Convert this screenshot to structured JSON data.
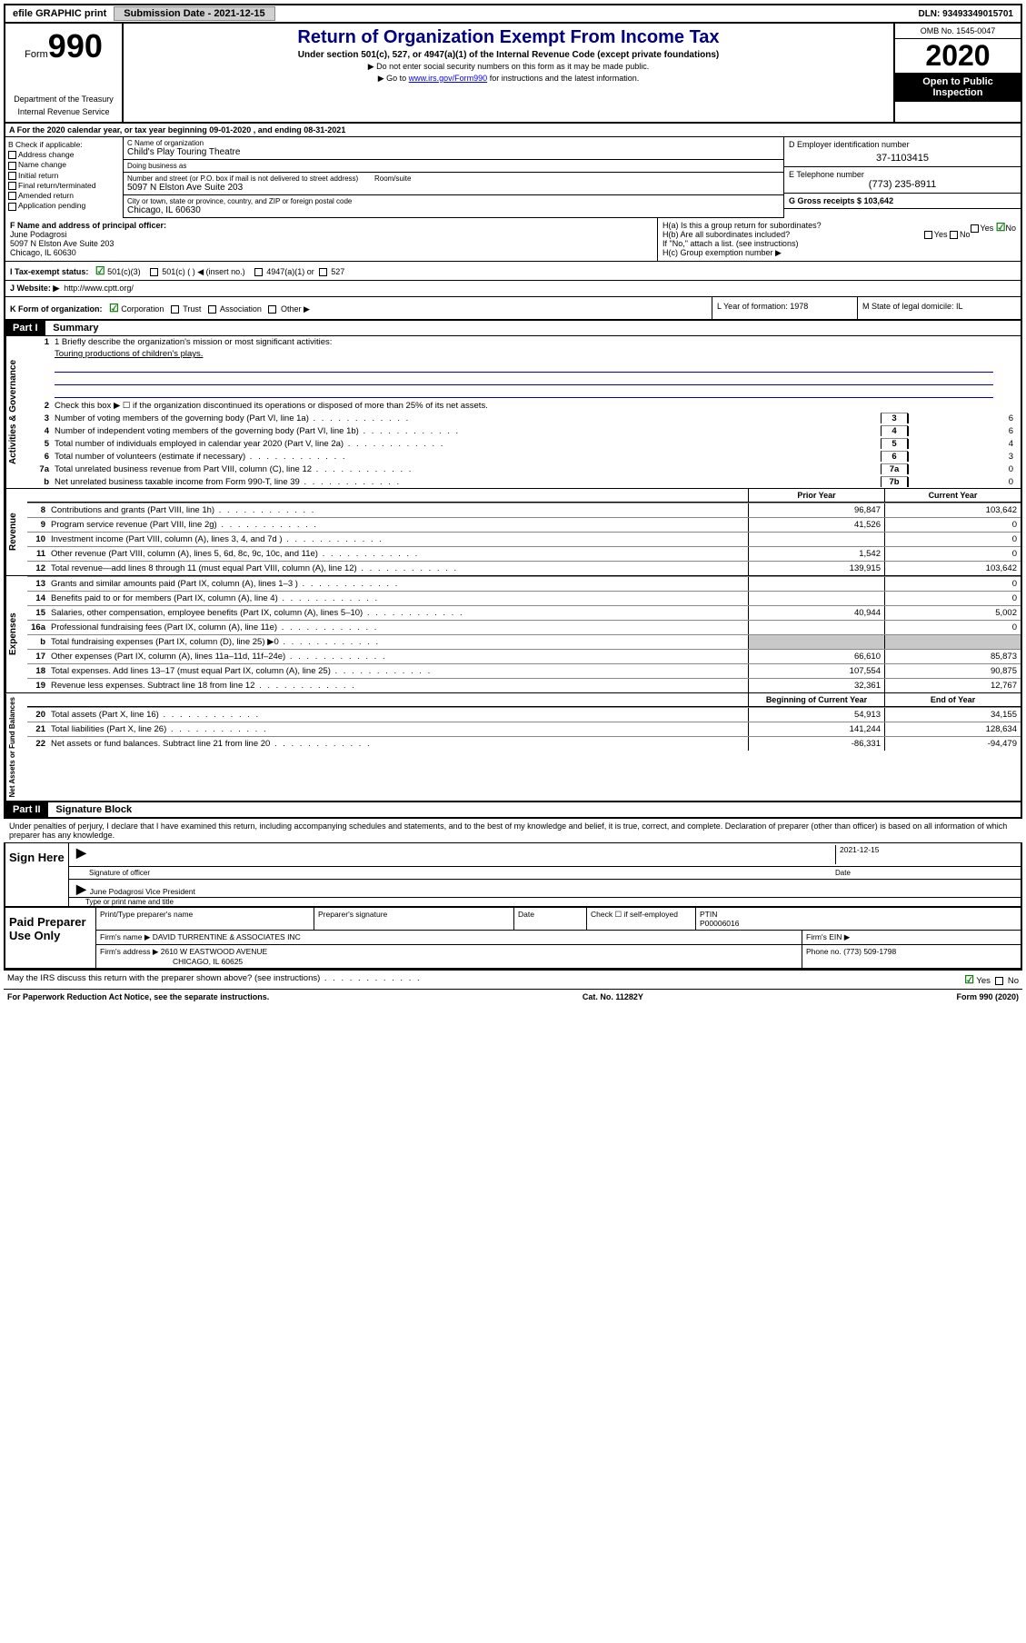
{
  "topbar": {
    "efile_label": "efile GRAPHIC print",
    "submission_label": "Submission Date - 2021-12-15",
    "dln_label": "DLN: 93493349015701"
  },
  "header": {
    "form_label": "Form",
    "form_num": "990",
    "dept1": "Department of the Treasury",
    "dept2": "Internal Revenue Service",
    "title": "Return of Organization Exempt From Income Tax",
    "subtitle": "Under section 501(c), 527, or 4947(a)(1) of the Internal Revenue Code (except private foundations)",
    "note1": "▶ Do not enter social security numbers on this form as it may be made public.",
    "note2_pre": "▶ Go to ",
    "note2_link": "www.irs.gov/Form990",
    "note2_post": " for instructions and the latest information.",
    "omb": "OMB No. 1545-0047",
    "year": "2020",
    "inspection": "Open to Public Inspection"
  },
  "rowA": "A For the 2020 calendar year, or tax year beginning 09-01-2020     , and ending 08-31-2021",
  "colB": {
    "header": "B Check if applicable:",
    "items": [
      "Address change",
      "Name change",
      "Initial return",
      "Final return/terminated",
      "Amended return",
      "Application pending"
    ]
  },
  "colC": {
    "name_label": "C Name of organization",
    "name": "Child's Play Touring Theatre",
    "dba_label": "Doing business as",
    "street_label": "Number and street (or P.O. box if mail is not delivered to street address)",
    "room_label": "Room/suite",
    "street": "5097 N Elston Ave Suite 203",
    "city_label": "City or town, state or province, country, and ZIP or foreign postal code",
    "city": "Chicago, IL  60630"
  },
  "colD": {
    "ein_label": "D Employer identification number",
    "ein": "37-1103415",
    "tel_label": "E Telephone number",
    "tel": "(773) 235-8911",
    "gross_label": "G Gross receipts $ 103,642"
  },
  "rowF": {
    "label": "F  Name and address of principal officer:",
    "name": "June Podagrosi",
    "addr1": "5097 N Elston Ave Suite 203",
    "addr2": "Chicago, IL  60630"
  },
  "rowH": {
    "ha": "H(a)  Is this a group return for subordinates?",
    "hb": "H(b)  Are all subordinates included?",
    "hb_note": "If \"No,\" attach a list. (see instructions)",
    "hc": "H(c)  Group exemption number ▶",
    "yes": "Yes",
    "no": "No"
  },
  "rowI": {
    "label": "I   Tax-exempt status:",
    "opt1": "501(c)(3)",
    "opt2": "501(c) (   ) ◀ (insert no.)",
    "opt3": "4947(a)(1) or",
    "opt4": "527"
  },
  "rowJ": {
    "label": "J   Website: ▶",
    "url": "http://www.cptt.org/"
  },
  "rowK": {
    "label": "K Form of organization:",
    "opts": [
      "Corporation",
      "Trust",
      "Association",
      "Other ▶"
    ],
    "L": "L Year of formation: 1978",
    "M": "M State of legal domicile: IL"
  },
  "part1": {
    "hdr": "Part I",
    "title": "Summary",
    "line1_label": "1  Briefly describe the organization's mission or most significant activities:",
    "line1_text": "Touring productions of children's plays.",
    "line2": "Check this box ▶ ☐  if the organization discontinued its operations or disposed of more than 25% of its net assets.",
    "governance_label": "Activities & Governance",
    "revenue_label": "Revenue",
    "expenses_label": "Expenses",
    "netassets_label": "Net Assets or Fund Balances",
    "lines_gov": [
      {
        "n": "3",
        "t": "Number of voting members of the governing body (Part VI, line 1a)",
        "box": "3",
        "v": "6"
      },
      {
        "n": "4",
        "t": "Number of independent voting members of the governing body (Part VI, line 1b)",
        "box": "4",
        "v": "6"
      },
      {
        "n": "5",
        "t": "Total number of individuals employed in calendar year 2020 (Part V, line 2a)",
        "box": "5",
        "v": "4"
      },
      {
        "n": "6",
        "t": "Total number of volunteers (estimate if necessary)",
        "box": "6",
        "v": "3"
      },
      {
        "n": "7a",
        "t": "Total unrelated business revenue from Part VIII, column (C), line 12",
        "box": "7a",
        "v": "0"
      },
      {
        "n": "b",
        "t": "Net unrelated business taxable income from Form 990-T, line 39",
        "box": "7b",
        "v": "0"
      }
    ],
    "prior_year": "Prior Year",
    "current_year": "Current Year",
    "beg_year": "Beginning of Current Year",
    "end_year": "End of Year",
    "lines_rev": [
      {
        "n": "8",
        "t": "Contributions and grants (Part VIII, line 1h)",
        "py": "96,847",
        "cy": "103,642"
      },
      {
        "n": "9",
        "t": "Program service revenue (Part VIII, line 2g)",
        "py": "41,526",
        "cy": "0"
      },
      {
        "n": "10",
        "t": "Investment income (Part VIII, column (A), lines 3, 4, and 7d )",
        "py": "",
        "cy": "0"
      },
      {
        "n": "11",
        "t": "Other revenue (Part VIII, column (A), lines 5, 6d, 8c, 9c, 10c, and 11e)",
        "py": "1,542",
        "cy": "0"
      },
      {
        "n": "12",
        "t": "Total revenue—add lines 8 through 11 (must equal Part VIII, column (A), line 12)",
        "py": "139,915",
        "cy": "103,642"
      }
    ],
    "lines_exp": [
      {
        "n": "13",
        "t": "Grants and similar amounts paid (Part IX, column (A), lines 1–3 )",
        "py": "",
        "cy": "0"
      },
      {
        "n": "14",
        "t": "Benefits paid to or for members (Part IX, column (A), line 4)",
        "py": "",
        "cy": "0"
      },
      {
        "n": "15",
        "t": "Salaries, other compensation, employee benefits (Part IX, column (A), lines 5–10)",
        "py": "40,944",
        "cy": "5,002"
      },
      {
        "n": "16a",
        "t": "Professional fundraising fees (Part IX, column (A), line 11e)",
        "py": "",
        "cy": "0"
      },
      {
        "n": "b",
        "t": "Total fundraising expenses (Part IX, column (D), line 25) ▶0",
        "py": "shaded",
        "cy": "shaded"
      },
      {
        "n": "17",
        "t": "Other expenses (Part IX, column (A), lines 11a–11d, 11f–24e)",
        "py": "66,610",
        "cy": "85,873"
      },
      {
        "n": "18",
        "t": "Total expenses. Add lines 13–17 (must equal Part IX, column (A), line 25)",
        "py": "107,554",
        "cy": "90,875"
      },
      {
        "n": "19",
        "t": "Revenue less expenses. Subtract line 18 from line 12",
        "py": "32,361",
        "cy": "12,767"
      }
    ],
    "lines_net": [
      {
        "n": "20",
        "t": "Total assets (Part X, line 16)",
        "py": "54,913",
        "cy": "34,155"
      },
      {
        "n": "21",
        "t": "Total liabilities (Part X, line 26)",
        "py": "141,244",
        "cy": "128,634"
      },
      {
        "n": "22",
        "t": "Net assets or fund balances. Subtract line 21 from line 20",
        "py": "-86,331",
        "cy": "-94,479"
      }
    ]
  },
  "part2": {
    "hdr": "Part II",
    "title": "Signature Block",
    "perjury": "Under penalties of perjury, I declare that I have examined this return, including accompanying schedules and statements, and to the best of my knowledge and belief, it is true, correct, and complete. Declaration of preparer (other than officer) is based on all information of which preparer has any knowledge.",
    "sign_here": "Sign Here",
    "sig_officer": "Signature of officer",
    "sig_date": "2021-12-15",
    "date_label": "Date",
    "officer_name": "June Podagrosi  Vice President",
    "type_name": "Type or print name and title",
    "paid_prep": "Paid Preparer Use Only",
    "p_name_label": "Print/Type preparer's name",
    "p_sig_label": "Preparer's signature",
    "p_date_label": "Date",
    "p_check": "Check ☐ if self-employed",
    "ptin_label": "PTIN",
    "ptin": "P00006016",
    "firm_name_label": "Firm's name    ▶",
    "firm_name": "DAVID TURRENTINE & ASSOCIATES INC",
    "firm_ein_label": "Firm's EIN ▶",
    "firm_addr_label": "Firm's address ▶",
    "firm_addr1": "2610 W EASTWOOD AVENUE",
    "firm_addr2": "CHICAGO, IL  60625",
    "phone_label": "Phone no. (773) 509-1798",
    "discuss": "May the IRS discuss this return with the preparer shown above? (see instructions)",
    "discuss_yes": "Yes",
    "discuss_no": "No"
  },
  "footer": {
    "left": "For Paperwork Reduction Act Notice, see the separate instructions.",
    "mid": "Cat. No. 11282Y",
    "right": "Form 990 (2020)"
  }
}
